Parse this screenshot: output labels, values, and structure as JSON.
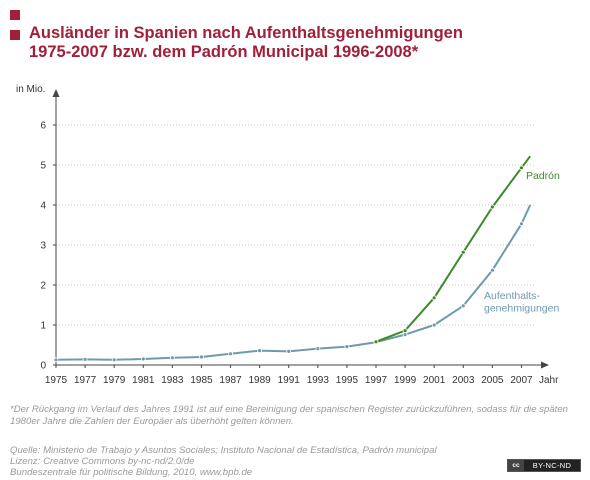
{
  "title": {
    "line1": "Ausländer in Spanien nach Aufenthaltsgenehmigungen",
    "line2": "1975-2007 bzw. dem Padrón Municipal 1996-2008*"
  },
  "chart_data": {
    "type": "line",
    "title": "Ausländer in Spanien nach Aufenthaltsgenehmigungen 1975-2007 bzw. dem Padrón Municipal 1996-2008*",
    "ylabel": "in Mio.",
    "xlabel": "Jahr",
    "xlim": [
      1975,
      2008
    ],
    "ylim": [
      0,
      6
    ],
    "yticks": [
      0,
      1,
      2,
      3,
      4,
      5,
      6
    ],
    "xticks": [
      1975,
      1977,
      1979,
      1981,
      1983,
      1985,
      1987,
      1989,
      1991,
      1993,
      1995,
      1997,
      1999,
      2001,
      2003,
      2005,
      2007
    ],
    "grid": "horizontal",
    "series": [
      {
        "name": "Aufenthalts-\ngenehmigungen",
        "color": "#6f9aad",
        "x": [
          1975,
          1977,
          1979,
          1981,
          1983,
          1985,
          1987,
          1989,
          1991,
          1993,
          1995,
          1997,
          1999,
          2001,
          2003,
          2005,
          2007,
          2007.6
        ],
        "y": [
          0.13,
          0.14,
          0.13,
          0.15,
          0.18,
          0.2,
          0.28,
          0.36,
          0.34,
          0.41,
          0.46,
          0.57,
          0.76,
          1.0,
          1.48,
          2.37,
          3.53,
          4.0
        ]
      },
      {
        "name": "Padrón",
        "color": "#3d8a2a",
        "x": [
          1997,
          1999,
          2001,
          2003,
          2005,
          2007,
          2007.6
        ],
        "y": [
          0.58,
          0.86,
          1.68,
          2.82,
          3.95,
          4.93,
          5.22
        ]
      }
    ]
  },
  "note": "*Der Rückgang im Verlauf des Jahres 1991 ist auf eine Bereinigung der spanischen Register zurückzuführen, sodass für die späten 1980er Jahre die Zahlen der Europäer als überhöht gelten können.",
  "source": {
    "line1": "Quelle: Ministerio de Trabajo y Asuntos Sociales; Instituto Nacional de Estadística, Padrón municipal",
    "line2": "Lizenz: Creative Commons by-nc-nd/2.0/de",
    "line3": "Bundeszentrale für politische Bildung, 2010, www.bpb.de"
  },
  "badge": {
    "logo": "cc",
    "text": "BY-NC-ND"
  }
}
